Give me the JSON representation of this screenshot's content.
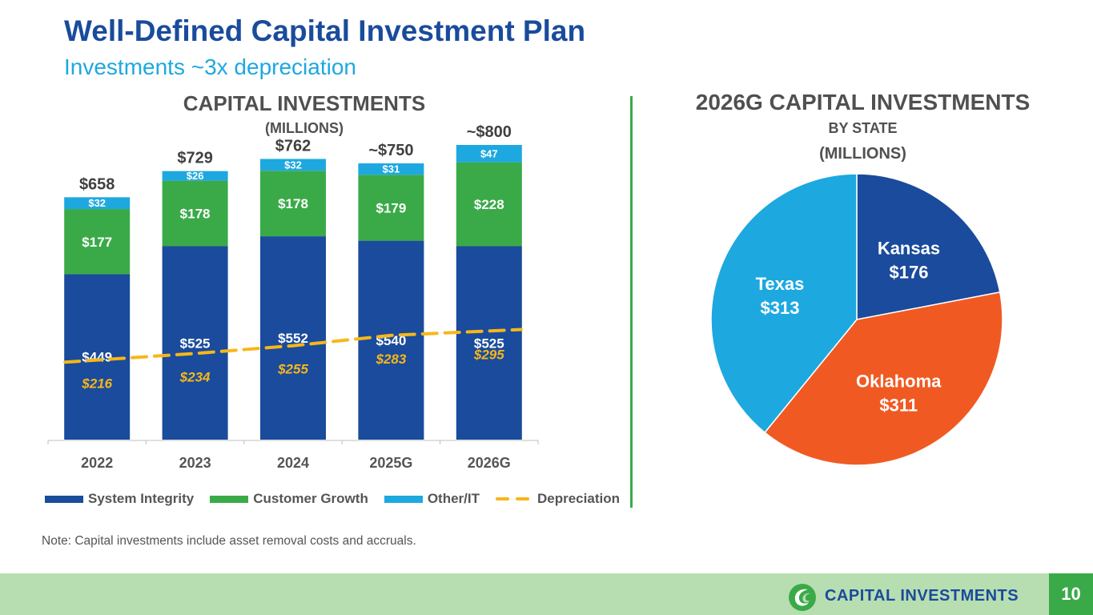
{
  "header": {
    "title": "Well-Defined Capital Investment Plan",
    "subtitle": "Investments ~3x depreciation"
  },
  "bar_panel": {
    "title": "CAPITAL INVESTMENTS",
    "subtitle": "(MILLIONS)"
  },
  "pie_panel": {
    "title": "2026G CAPITAL INVESTMENTS",
    "subtitle1": "BY STATE",
    "subtitle2": "(MILLIONS)"
  },
  "colors": {
    "system_integrity": "#1a4b9c",
    "customer_growth": "#3aaa49",
    "other_it": "#1ea8e0",
    "depreciation": "#f7b718",
    "oklahoma": "#f05a22"
  },
  "legend": [
    {
      "label": "System Integrity",
      "color": "#1a4b9c",
      "kind": "box"
    },
    {
      "label": "Customer Growth",
      "color": "#3aaa49",
      "kind": "box"
    },
    {
      "label": "Other/IT",
      "color": "#1ea8e0",
      "kind": "box"
    },
    {
      "label": "Depreciation",
      "color": "#f7b718",
      "kind": "dash"
    }
  ],
  "chart_data": [
    {
      "type": "bar",
      "stacked": true,
      "title": "CAPITAL INVESTMENTS",
      "subtitle": "(MILLIONS)",
      "categories": [
        "2022",
        "2023",
        "2024",
        "2025G",
        "2026G"
      ],
      "series": [
        {
          "name": "System Integrity",
          "values": [
            449,
            525,
            552,
            540,
            525
          ],
          "labels": [
            "$449",
            "$525",
            "$552",
            "$540",
            "$525"
          ]
        },
        {
          "name": "Customer Growth",
          "values": [
            177,
            178,
            178,
            179,
            228
          ],
          "labels": [
            "$177",
            "$178",
            "$178",
            "$179",
            "$228"
          ]
        },
        {
          "name": "Other/IT",
          "values": [
            32,
            26,
            32,
            31,
            47
          ],
          "labels": [
            "$32",
            "$26",
            "$32",
            "$31",
            "$47"
          ]
        }
      ],
      "totals": [
        "$658",
        "$729",
        "$762",
        "~$750",
        "~$800"
      ],
      "line_series": {
        "name": "Depreciation",
        "style": "dashed",
        "values": [
          216,
          234,
          255,
          283,
          295
        ],
        "labels": [
          "$216",
          "$234",
          "$255",
          "$283",
          "$295"
        ]
      },
      "ylim": [
        0,
        800
      ],
      "xlabel": "",
      "ylabel": ""
    },
    {
      "type": "pie",
      "title": "2026G CAPITAL INVESTMENTS",
      "subtitle": "BY STATE (MILLIONS)",
      "slices": [
        {
          "name": "Kansas",
          "value": 176,
          "label": "$176",
          "color": "#1a4b9c"
        },
        {
          "name": "Oklahoma",
          "value": 311,
          "label": "$311",
          "color": "#f05a22"
        },
        {
          "name": "Texas",
          "value": 313,
          "label": "$313",
          "color": "#1ea8e0"
        }
      ],
      "start_angle": "12 o'clock, clockwise"
    }
  ],
  "note": "Note: Capital investments include asset removal costs and accruals.",
  "footer": {
    "section": "CAPITAL INVESTMENTS",
    "page_number": "10",
    "logo_icon": "swirl-logo-icon"
  }
}
